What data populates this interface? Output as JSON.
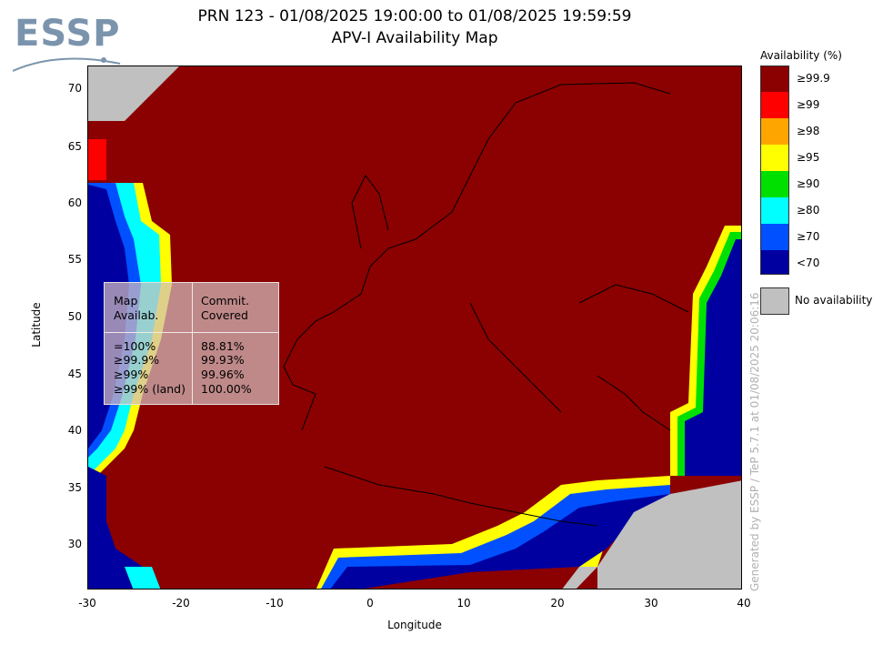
{
  "logo": {
    "text": "ESSP"
  },
  "title": {
    "line1": "PRN 123 - 01/08/2025 19:00:00 to 01/08/2025 19:59:59",
    "line2": "APV-I Availability Map"
  },
  "axes": {
    "xlabel": "Longitude",
    "ylabel": "Latitude",
    "xticks": [
      "-30",
      "-20",
      "-10",
      "0",
      "10",
      "20",
      "30",
      "40"
    ],
    "yticks": [
      "70",
      "65",
      "60",
      "55",
      "50",
      "45",
      "40",
      "35",
      "30"
    ],
    "xlim": [
      -30,
      40
    ],
    "ylim": [
      26,
      72
    ]
  },
  "legend": {
    "title": "Availability (%)",
    "items": [
      {
        "label": "≥99.9",
        "color": "#8b0000"
      },
      {
        "label": "≥99",
        "color": "#ff0000"
      },
      {
        "label": "≥98",
        "color": "#ffa500"
      },
      {
        "label": "≥95",
        "color": "#ffff00"
      },
      {
        "label": "≥90",
        "color": "#00e000"
      },
      {
        "label": "≥80",
        "color": "#00ffff"
      },
      {
        "label": "≥70",
        "color": "#0050ff"
      },
      {
        "label": "<70",
        "color": "#0000a0"
      }
    ],
    "no_availability": {
      "label": "No availability",
      "color": "#c0c0c0"
    }
  },
  "stats": {
    "header_col1": [
      "Map",
      "Availab."
    ],
    "header_col2": [
      "Commit.",
      "Covered"
    ],
    "rows": [
      {
        "map": "=100%",
        "covered": "88.81%"
      },
      {
        "map": "≥99.9%",
        "covered": "99.93%"
      },
      {
        "map": "≥99%",
        "covered": "99.96%"
      },
      {
        "map": "≥99% (land)",
        "covered": "100.00%"
      }
    ]
  },
  "generated_text": "Generated by ESSP / TeP 5.7.1 at 01/08/2025 20:06:16",
  "chart_data": {
    "type": "heatmap",
    "title": "PRN 123 - 01/08/2025 19:00:00 to 01/08/2025 19:59:59 APV-I Availability Map",
    "xlabel": "Longitude",
    "ylabel": "Latitude",
    "xlim": [
      -30,
      40
    ],
    "ylim": [
      26,
      72
    ],
    "dominant_class": "≥99.9",
    "grid": false
  }
}
